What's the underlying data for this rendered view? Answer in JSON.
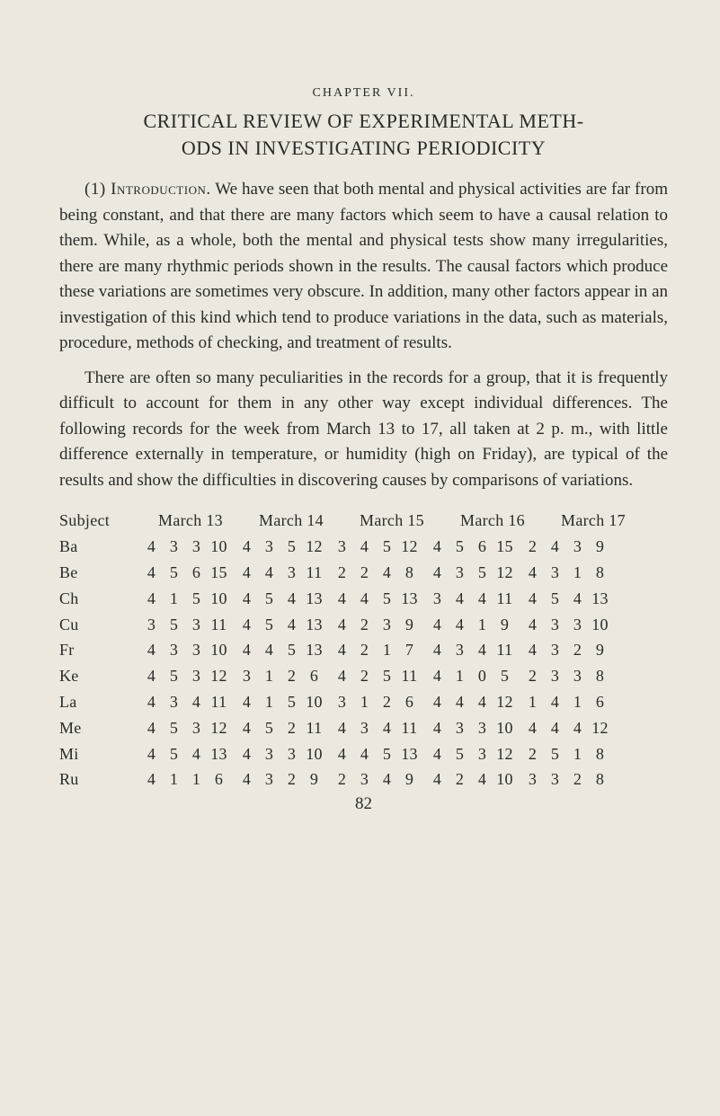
{
  "chapter_label": "CHAPTER VII.",
  "chapter_title_line1": "CRITICAL REVIEW OF EXPERIMENTAL METH-",
  "chapter_title_line2": "ODS IN INVESTIGATING PERIODICITY",
  "para1_lead": "(1) Introduction.",
  "para1_rest": " We have seen that both mental and physical activities are far from being constant, and that there are many factors which seem to have a causal relation to them. While, as a whole, both the mental and physical tests show many irregularities, there are many rhythmic periods shown in the results. The causal factors which pro­duce these variations are sometimes very obscure. In addition, many other factors appear in an investigation of this kind which tend to produce variations in the data, such as ma­terials, procedure, methods of checking, and treatment of results.",
  "para2": "There are often so many peculiarities in the records for a group, that it is frequently difficult to account for them in any other way except individual differences. The following rec­ords for the week from March 13 to 17, all taken at 2 p. m., with little difference externally in temperature, or humidity (high on Friday), are typical of the results and show the difficulties in discovering causes by comparisons of varia­tions.",
  "table": {
    "header_subject": "Subject",
    "dates": [
      "March 13",
      "March 14",
      "March 15",
      "March 16",
      "March 17"
    ],
    "rows": [
      {
        "s": "Ba",
        "d": [
          [
            4,
            3,
            3,
            10
          ],
          [
            4,
            3,
            5,
            12
          ],
          [
            3,
            4,
            5,
            12
          ],
          [
            4,
            5,
            6,
            15
          ],
          [
            2,
            4,
            3,
            9
          ]
        ]
      },
      {
        "s": "Be",
        "d": [
          [
            4,
            5,
            6,
            15
          ],
          [
            4,
            4,
            3,
            11
          ],
          [
            2,
            2,
            4,
            8
          ],
          [
            4,
            3,
            5,
            12
          ],
          [
            4,
            3,
            1,
            8
          ]
        ]
      },
      {
        "s": "Ch",
        "d": [
          [
            4,
            1,
            5,
            10
          ],
          [
            4,
            5,
            4,
            13
          ],
          [
            4,
            4,
            5,
            13
          ],
          [
            3,
            4,
            4,
            11
          ],
          [
            4,
            5,
            4,
            13
          ]
        ]
      },
      {
        "s": "Cu",
        "d": [
          [
            3,
            5,
            3,
            11
          ],
          [
            4,
            5,
            4,
            13
          ],
          [
            4,
            2,
            3,
            9
          ],
          [
            4,
            4,
            1,
            9
          ],
          [
            4,
            3,
            3,
            10
          ]
        ]
      },
      {
        "s": "Fr",
        "d": [
          [
            4,
            3,
            3,
            10
          ],
          [
            4,
            4,
            5,
            13
          ],
          [
            4,
            2,
            1,
            7
          ],
          [
            4,
            3,
            4,
            11
          ],
          [
            4,
            3,
            2,
            9
          ]
        ]
      },
      {
        "s": "Ke",
        "d": [
          [
            4,
            5,
            3,
            12
          ],
          [
            3,
            1,
            2,
            6
          ],
          [
            4,
            2,
            5,
            11
          ],
          [
            4,
            1,
            0,
            5
          ],
          [
            2,
            3,
            3,
            8
          ]
        ]
      },
      {
        "s": "La",
        "d": [
          [
            4,
            3,
            4,
            11
          ],
          [
            4,
            1,
            5,
            10
          ],
          [
            3,
            1,
            2,
            6
          ],
          [
            4,
            4,
            4,
            12
          ],
          [
            1,
            4,
            1,
            6
          ]
        ]
      },
      {
        "s": "Me",
        "d": [
          [
            4,
            5,
            3,
            12
          ],
          [
            4,
            5,
            2,
            11
          ],
          [
            4,
            3,
            4,
            11
          ],
          [
            4,
            3,
            3,
            10
          ],
          [
            4,
            4,
            4,
            12
          ]
        ]
      },
      {
        "s": "Mi",
        "d": [
          [
            4,
            5,
            4,
            13
          ],
          [
            4,
            3,
            3,
            10
          ],
          [
            4,
            4,
            5,
            13
          ],
          [
            4,
            5,
            3,
            12
          ],
          [
            2,
            5,
            1,
            8
          ]
        ]
      },
      {
        "s": "Ru",
        "d": [
          [
            4,
            1,
            1,
            6
          ],
          [
            4,
            3,
            2,
            9
          ],
          [
            2,
            3,
            4,
            9
          ],
          [
            4,
            2,
            4,
            10
          ],
          [
            3,
            3,
            2,
            8
          ]
        ]
      }
    ]
  },
  "page_number": "82"
}
